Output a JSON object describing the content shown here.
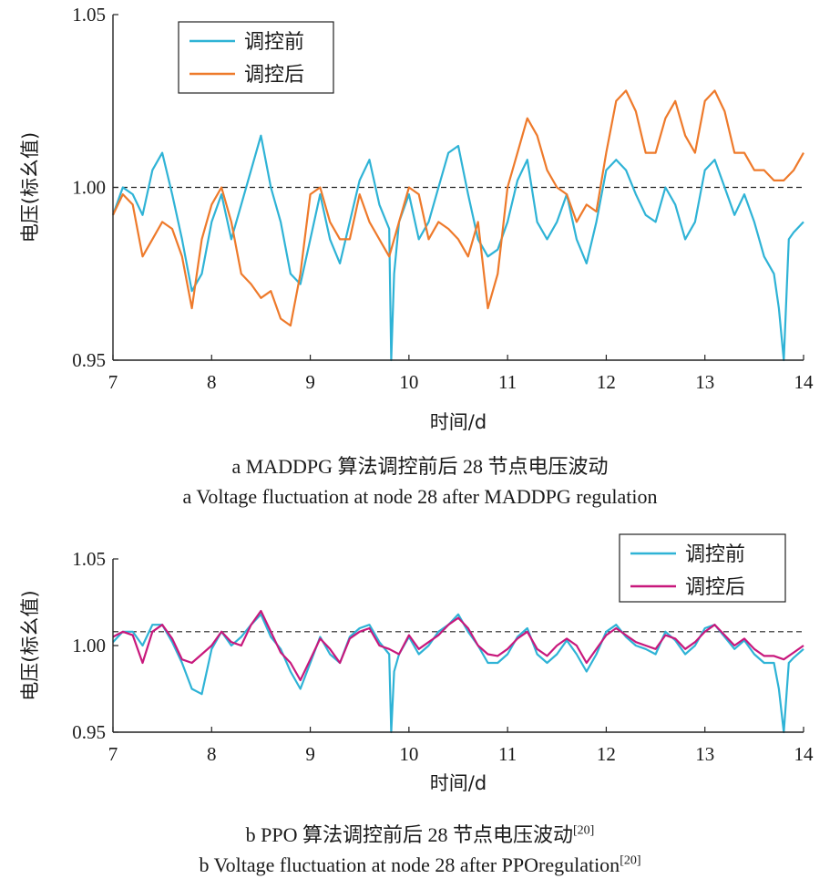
{
  "colors": {
    "before": "#2fb3d6",
    "after_a": "#ee7a2b",
    "after_b": "#c8187c",
    "axis": "#222222",
    "reference": "#222222"
  },
  "chart_data": [
    {
      "id": "a",
      "type": "line",
      "xlabel": "时间/d",
      "ylabel": "电压(标幺值)",
      "xlim": [
        7,
        14
      ],
      "ylim": [
        0.95,
        1.05
      ],
      "xticks": [
        "7",
        "8",
        "9",
        "10",
        "11",
        "12",
        "13",
        "14"
      ],
      "yticks": [
        "0.95",
        "1.00",
        "1.05"
      ],
      "reference_line": 1.0,
      "legend": "top-left",
      "caption": "a  MADDPG 算法调控前后 28 节点电压波动",
      "caption_en": "a  Voltage fluctuation at node 28 after MADDPG regulation",
      "caption_ref": "",
      "series": [
        {
          "name": "调控前",
          "color": "before",
          "x": [
            7.0,
            7.1,
            7.2,
            7.3,
            7.4,
            7.5,
            7.6,
            7.7,
            7.8,
            7.9,
            8.0,
            8.1,
            8.2,
            8.3,
            8.4,
            8.5,
            8.6,
            8.7,
            8.8,
            8.9,
            9.0,
            9.1,
            9.2,
            9.3,
            9.4,
            9.5,
            9.6,
            9.7,
            9.8,
            9.82,
            9.85,
            9.9,
            10.0,
            10.1,
            10.2,
            10.3,
            10.4,
            10.5,
            10.6,
            10.7,
            10.8,
            10.9,
            11.0,
            11.1,
            11.2,
            11.3,
            11.4,
            11.5,
            11.6,
            11.7,
            11.8,
            11.9,
            12.0,
            12.1,
            12.2,
            12.3,
            12.4,
            12.5,
            12.6,
            12.7,
            12.8,
            12.9,
            13.0,
            13.1,
            13.2,
            13.3,
            13.4,
            13.5,
            13.6,
            13.7,
            13.75,
            13.8,
            13.85,
            13.9,
            14.0
          ],
          "y": [
            0.992,
            1.0,
            0.998,
            0.992,
            1.005,
            1.01,
            0.998,
            0.985,
            0.97,
            0.975,
            0.99,
            0.998,
            0.985,
            0.995,
            1.005,
            1.015,
            1.0,
            0.99,
            0.975,
            0.972,
            0.985,
            0.998,
            0.985,
            0.978,
            0.99,
            1.002,
            1.008,
            0.995,
            0.988,
            0.95,
            0.975,
            0.99,
            0.998,
            0.985,
            0.99,
            1.0,
            1.01,
            1.012,
            0.998,
            0.985,
            0.98,
            0.982,
            0.99,
            1.002,
            1.008,
            0.99,
            0.985,
            0.99,
            0.998,
            0.985,
            0.978,
            0.99,
            1.005,
            1.008,
            1.005,
            0.998,
            0.992,
            0.99,
            1.0,
            0.995,
            0.985,
            0.99,
            1.005,
            1.008,
            1.0,
            0.992,
            0.998,
            0.99,
            0.98,
            0.975,
            0.965,
            0.95,
            0.985,
            0.987,
            0.99
          ]
        },
        {
          "name": "调控后",
          "color": "after_a",
          "x": [
            7.0,
            7.1,
            7.2,
            7.3,
            7.4,
            7.5,
            7.6,
            7.7,
            7.8,
            7.9,
            8.0,
            8.1,
            8.2,
            8.3,
            8.4,
            8.5,
            8.6,
            8.7,
            8.8,
            8.9,
            9.0,
            9.1,
            9.2,
            9.3,
            9.4,
            9.5,
            9.6,
            9.7,
            9.8,
            9.9,
            10.0,
            10.1,
            10.2,
            10.3,
            10.4,
            10.5,
            10.6,
            10.7,
            10.8,
            10.9,
            11.0,
            11.1,
            11.2,
            11.3,
            11.4,
            11.5,
            11.6,
            11.7,
            11.8,
            11.9,
            12.0,
            12.1,
            12.2,
            12.3,
            12.4,
            12.5,
            12.6,
            12.7,
            12.8,
            12.9,
            13.0,
            13.1,
            13.2,
            13.3,
            13.4,
            13.5,
            13.6,
            13.7,
            13.8,
            13.9,
            14.0
          ],
          "y": [
            0.992,
            0.998,
            0.995,
            0.98,
            0.985,
            0.99,
            0.988,
            0.98,
            0.965,
            0.985,
            0.995,
            1.0,
            0.99,
            0.975,
            0.972,
            0.968,
            0.97,
            0.962,
            0.96,
            0.975,
            0.998,
            1.0,
            0.99,
            0.985,
            0.985,
            0.998,
            0.99,
            0.985,
            0.98,
            0.99,
            1.0,
            0.998,
            0.985,
            0.99,
            0.988,
            0.985,
            0.98,
            0.99,
            0.965,
            0.975,
            1.0,
            1.01,
            1.02,
            1.015,
            1.005,
            1.0,
            0.998,
            0.99,
            0.995,
            0.993,
            1.01,
            1.025,
            1.028,
            1.022,
            1.01,
            1.01,
            1.02,
            1.025,
            1.015,
            1.01,
            1.025,
            1.028,
            1.022,
            1.01,
            1.01,
            1.005,
            1.005,
            1.002,
            1.002,
            1.005,
            1.01
          ]
        }
      ]
    },
    {
      "id": "b",
      "type": "line",
      "xlabel": "时间/d",
      "ylabel": "电压(标幺值)",
      "xlim": [
        7,
        14
      ],
      "ylim": [
        0.95,
        1.05
      ],
      "xticks": [
        "7",
        "8",
        "9",
        "10",
        "11",
        "12",
        "13",
        "14"
      ],
      "yticks": [
        "0.95",
        "1.00",
        "1.05"
      ],
      "reference_line": 1.008,
      "legend": "top-right",
      "caption": "b  PPO 算法调控前后 28 节点电压波动",
      "caption_en": "b  Voltage fluctuation at node 28 after PPOregulation",
      "caption_ref": "[20]",
      "series": [
        {
          "name": "调控前",
          "color": "before",
          "x": [
            7.0,
            7.1,
            7.2,
            7.3,
            7.4,
            7.5,
            7.6,
            7.7,
            7.8,
            7.9,
            8.0,
            8.1,
            8.2,
            8.3,
            8.4,
            8.5,
            8.6,
            8.7,
            8.8,
            8.9,
            9.0,
            9.1,
            9.2,
            9.3,
            9.4,
            9.5,
            9.6,
            9.7,
            9.8,
            9.82,
            9.85,
            9.9,
            10.0,
            10.1,
            10.2,
            10.3,
            10.4,
            10.5,
            10.6,
            10.7,
            10.8,
            10.9,
            11.0,
            11.1,
            11.2,
            11.3,
            11.4,
            11.5,
            11.6,
            11.7,
            11.8,
            11.9,
            12.0,
            12.1,
            12.2,
            12.3,
            12.4,
            12.5,
            12.6,
            12.7,
            12.8,
            12.9,
            13.0,
            13.1,
            13.2,
            13.3,
            13.4,
            13.5,
            13.6,
            13.7,
            13.75,
            13.8,
            13.85,
            13.9,
            14.0
          ],
          "y": [
            1.002,
            1.008,
            1.008,
            1.0,
            1.012,
            1.012,
            1.002,
            0.99,
            0.975,
            0.972,
            0.998,
            1.008,
            1.0,
            1.005,
            1.012,
            1.018,
            1.005,
            0.998,
            0.985,
            0.975,
            0.99,
            1.005,
            0.995,
            0.99,
            1.005,
            1.01,
            1.012,
            1.002,
            0.995,
            0.95,
            0.985,
            0.995,
            1.005,
            0.995,
            1.0,
            1.008,
            1.012,
            1.018,
            1.008,
            1.0,
            0.99,
            0.99,
            0.995,
            1.005,
            1.01,
            0.995,
            0.99,
            0.995,
            1.003,
            0.995,
            0.985,
            0.995,
            1.008,
            1.012,
            1.005,
            1.0,
            0.998,
            0.995,
            1.008,
            1.003,
            0.995,
            1.0,
            1.01,
            1.012,
            1.005,
            0.998,
            1.003,
            0.995,
            0.99,
            0.99,
            0.975,
            0.95,
            0.99,
            0.993,
            0.998
          ]
        },
        {
          "name": "调控后",
          "color": "after_b",
          "x": [
            7.0,
            7.1,
            7.2,
            7.3,
            7.4,
            7.5,
            7.6,
            7.7,
            7.8,
            7.9,
            8.0,
            8.1,
            8.2,
            8.3,
            8.4,
            8.5,
            8.6,
            8.7,
            8.8,
            8.9,
            9.0,
            9.1,
            9.2,
            9.3,
            9.4,
            9.5,
            9.6,
            9.7,
            9.8,
            9.9,
            10.0,
            10.1,
            10.2,
            10.3,
            10.4,
            10.5,
            10.6,
            10.7,
            10.8,
            10.9,
            11.0,
            11.1,
            11.2,
            11.3,
            11.4,
            11.5,
            11.6,
            11.7,
            11.8,
            11.9,
            12.0,
            12.1,
            12.2,
            12.3,
            12.4,
            12.5,
            12.6,
            12.7,
            12.8,
            12.9,
            13.0,
            13.1,
            13.2,
            13.3,
            13.4,
            13.5,
            13.6,
            13.7,
            13.8,
            13.9,
            14.0
          ],
          "y": [
            1.005,
            1.008,
            1.006,
            0.99,
            1.008,
            1.012,
            1.004,
            0.992,
            0.99,
            0.995,
            1.0,
            1.008,
            1.002,
            1.0,
            1.012,
            1.02,
            1.008,
            0.996,
            0.99,
            0.98,
            0.992,
            1.004,
            0.998,
            0.99,
            1.004,
            1.008,
            1.01,
            1.0,
            0.998,
            0.995,
            1.006,
            0.998,
            1.002,
            1.006,
            1.012,
            1.016,
            1.01,
            1.0,
            0.995,
            0.994,
            0.998,
            1.004,
            1.008,
            0.998,
            0.994,
            1.0,
            1.004,
            1.0,
            0.99,
            0.998,
            1.006,
            1.01,
            1.006,
            1.002,
            1.0,
            0.998,
            1.006,
            1.004,
            0.998,
            1.002,
            1.008,
            1.012,
            1.006,
            1.0,
            1.004,
            0.998,
            0.994,
            0.994,
            0.992,
            0.996,
            1.0
          ]
        }
      ]
    }
  ]
}
